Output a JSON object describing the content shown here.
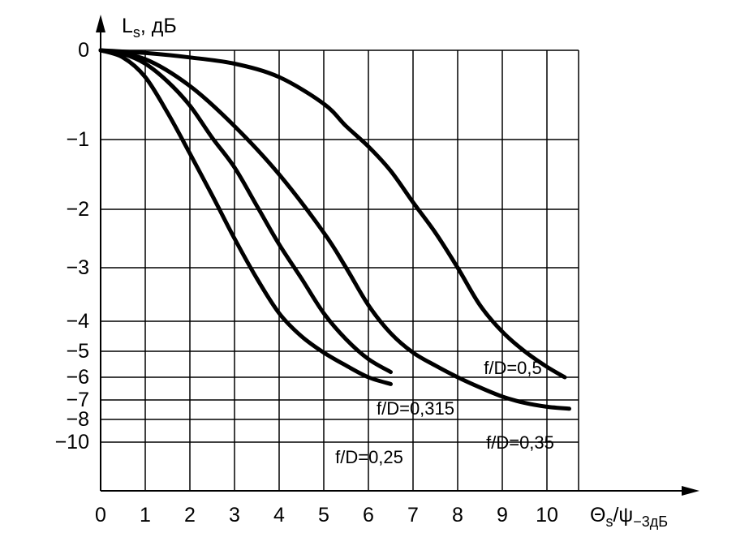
{
  "chart_data": {
    "type": "line",
    "ylabel_main": "L",
    "ylabel_sub": "s",
    "ylabel_unit": ", дБ",
    "xlabel_main": "Θ",
    "xlabel_sub": "s",
    "xlabel_mid": "/ψ",
    "xlabel_sub2": "−3дБ",
    "xlim": [
      0,
      10.8
    ],
    "ylim_print": [
      -10,
      0
    ],
    "grid": true,
    "x_ticks": [
      {
        "v": 0,
        "label": "0"
      },
      {
        "v": 1,
        "label": "1"
      },
      {
        "v": 2,
        "label": "2"
      },
      {
        "v": 3,
        "label": "3"
      },
      {
        "v": 4,
        "label": "4"
      },
      {
        "v": 5,
        "label": "5"
      },
      {
        "v": 6,
        "label": "6"
      },
      {
        "v": 7,
        "label": "7"
      },
      {
        "v": 8,
        "label": "8"
      },
      {
        "v": 9,
        "label": "9"
      },
      {
        "v": 10,
        "label": "10"
      }
    ],
    "y_ticks": [
      {
        "v": 0,
        "label": "0"
      },
      {
        "v": -1,
        "label": "−1"
      },
      {
        "v": -2,
        "label": "−2"
      },
      {
        "v": -3,
        "label": "−3"
      },
      {
        "v": -4,
        "label": "−4"
      },
      {
        "v": -5,
        "label": "−5"
      },
      {
        "v": -6,
        "label": "−6"
      },
      {
        "v": -7,
        "label": "−7"
      },
      {
        "v": -8,
        "label": "−8"
      },
      {
        "v": -10,
        "label": "−10"
      }
    ],
    "series": [
      {
        "name": "f/D=0,25",
        "x": [
          0,
          0.5,
          1,
          1.5,
          2,
          2.5,
          3,
          3.5,
          4,
          4.5,
          5,
          5.5,
          6,
          6.5
        ],
        "y": [
          0,
          -0.08,
          -0.3,
          -0.7,
          -1.2,
          -1.8,
          -2.5,
          -3.2,
          -3.85,
          -4.5,
          -5.05,
          -5.55,
          -6.0,
          -6.3
        ]
      },
      {
        "name": "f/D=0,315",
        "x": [
          0,
          0.5,
          1,
          1.5,
          2,
          2.5,
          3,
          3.5,
          4,
          4.5,
          5,
          5.5,
          6,
          6.5
        ],
        "y": [
          0,
          -0.04,
          -0.15,
          -0.35,
          -0.62,
          -0.98,
          -1.4,
          -1.95,
          -2.6,
          -3.2,
          -3.85,
          -4.6,
          -5.3,
          -5.8
        ]
      },
      {
        "name": "f/D=0,35",
        "x": [
          0,
          1,
          2,
          3,
          4,
          5,
          5.5,
          6,
          6.5,
          7,
          7.5,
          8,
          8.5,
          9,
          9.5,
          10,
          10.5
        ],
        "y": [
          0,
          -0.1,
          -0.4,
          -0.85,
          -1.5,
          -2.4,
          -3.0,
          -3.7,
          -4.4,
          -5.05,
          -5.55,
          -6.0,
          -6.45,
          -6.85,
          -7.15,
          -7.35,
          -7.45
        ]
      },
      {
        "name": "f/D=0,5",
        "x": [
          0,
          1,
          2,
          3,
          4,
          5,
          5.5,
          6,
          6.5,
          7,
          7.5,
          8,
          8.5,
          9,
          9.5,
          10,
          10.4
        ],
        "y": [
          0,
          -0.03,
          -0.08,
          -0.15,
          -0.3,
          -0.6,
          -0.85,
          -1.1,
          -1.45,
          -1.9,
          -2.4,
          -3.0,
          -3.7,
          -4.35,
          -5.0,
          -5.6,
          -6.0
        ]
      }
    ],
    "labels": [
      {
        "series": "f/D=0,25",
        "text": "f/D=0,25"
      },
      {
        "series": "f/D=0,315",
        "text": "f/D=0,315"
      },
      {
        "series": "f/D=0,35",
        "text": "f/D=0,35"
      },
      {
        "series": "f/D=0,5",
        "text": "f/D=0,5"
      }
    ]
  }
}
